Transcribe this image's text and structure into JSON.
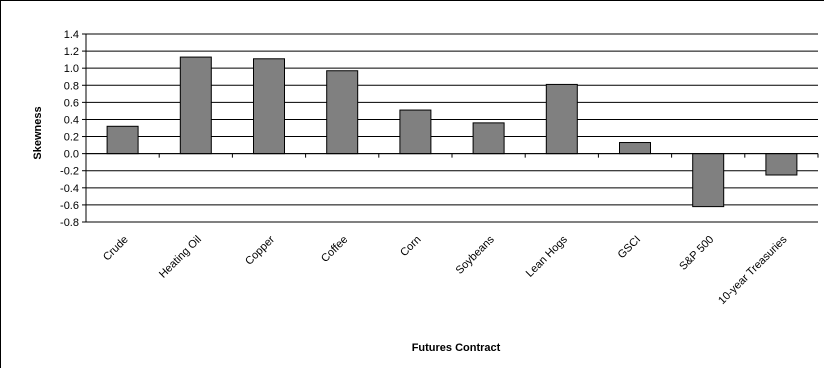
{
  "chart_data": {
    "type": "bar",
    "title": "",
    "xlabel": "Futures Contract",
    "ylabel": "Skewness",
    "categories": [
      "Crude",
      "Heating Oil",
      "Copper",
      "Coffee",
      "Corn",
      "Soybeans",
      "Lean Hogs",
      "GSCI",
      "S&P 500",
      "10-year Treasuries"
    ],
    "values": [
      0.32,
      1.13,
      1.11,
      0.97,
      0.51,
      0.36,
      0.81,
      0.13,
      -0.62,
      -0.25
    ],
    "ylim": [
      -0.8,
      1.4
    ],
    "yticks": [
      "1.4",
      "1.2",
      "1.0",
      "0.8",
      "0.6",
      "0.4",
      "0.2",
      "0.0",
      "-0.2",
      "-0.4",
      "-0.6",
      "-0.8"
    ],
    "grid": true,
    "legend": "none",
    "bar_color": "#808080"
  }
}
